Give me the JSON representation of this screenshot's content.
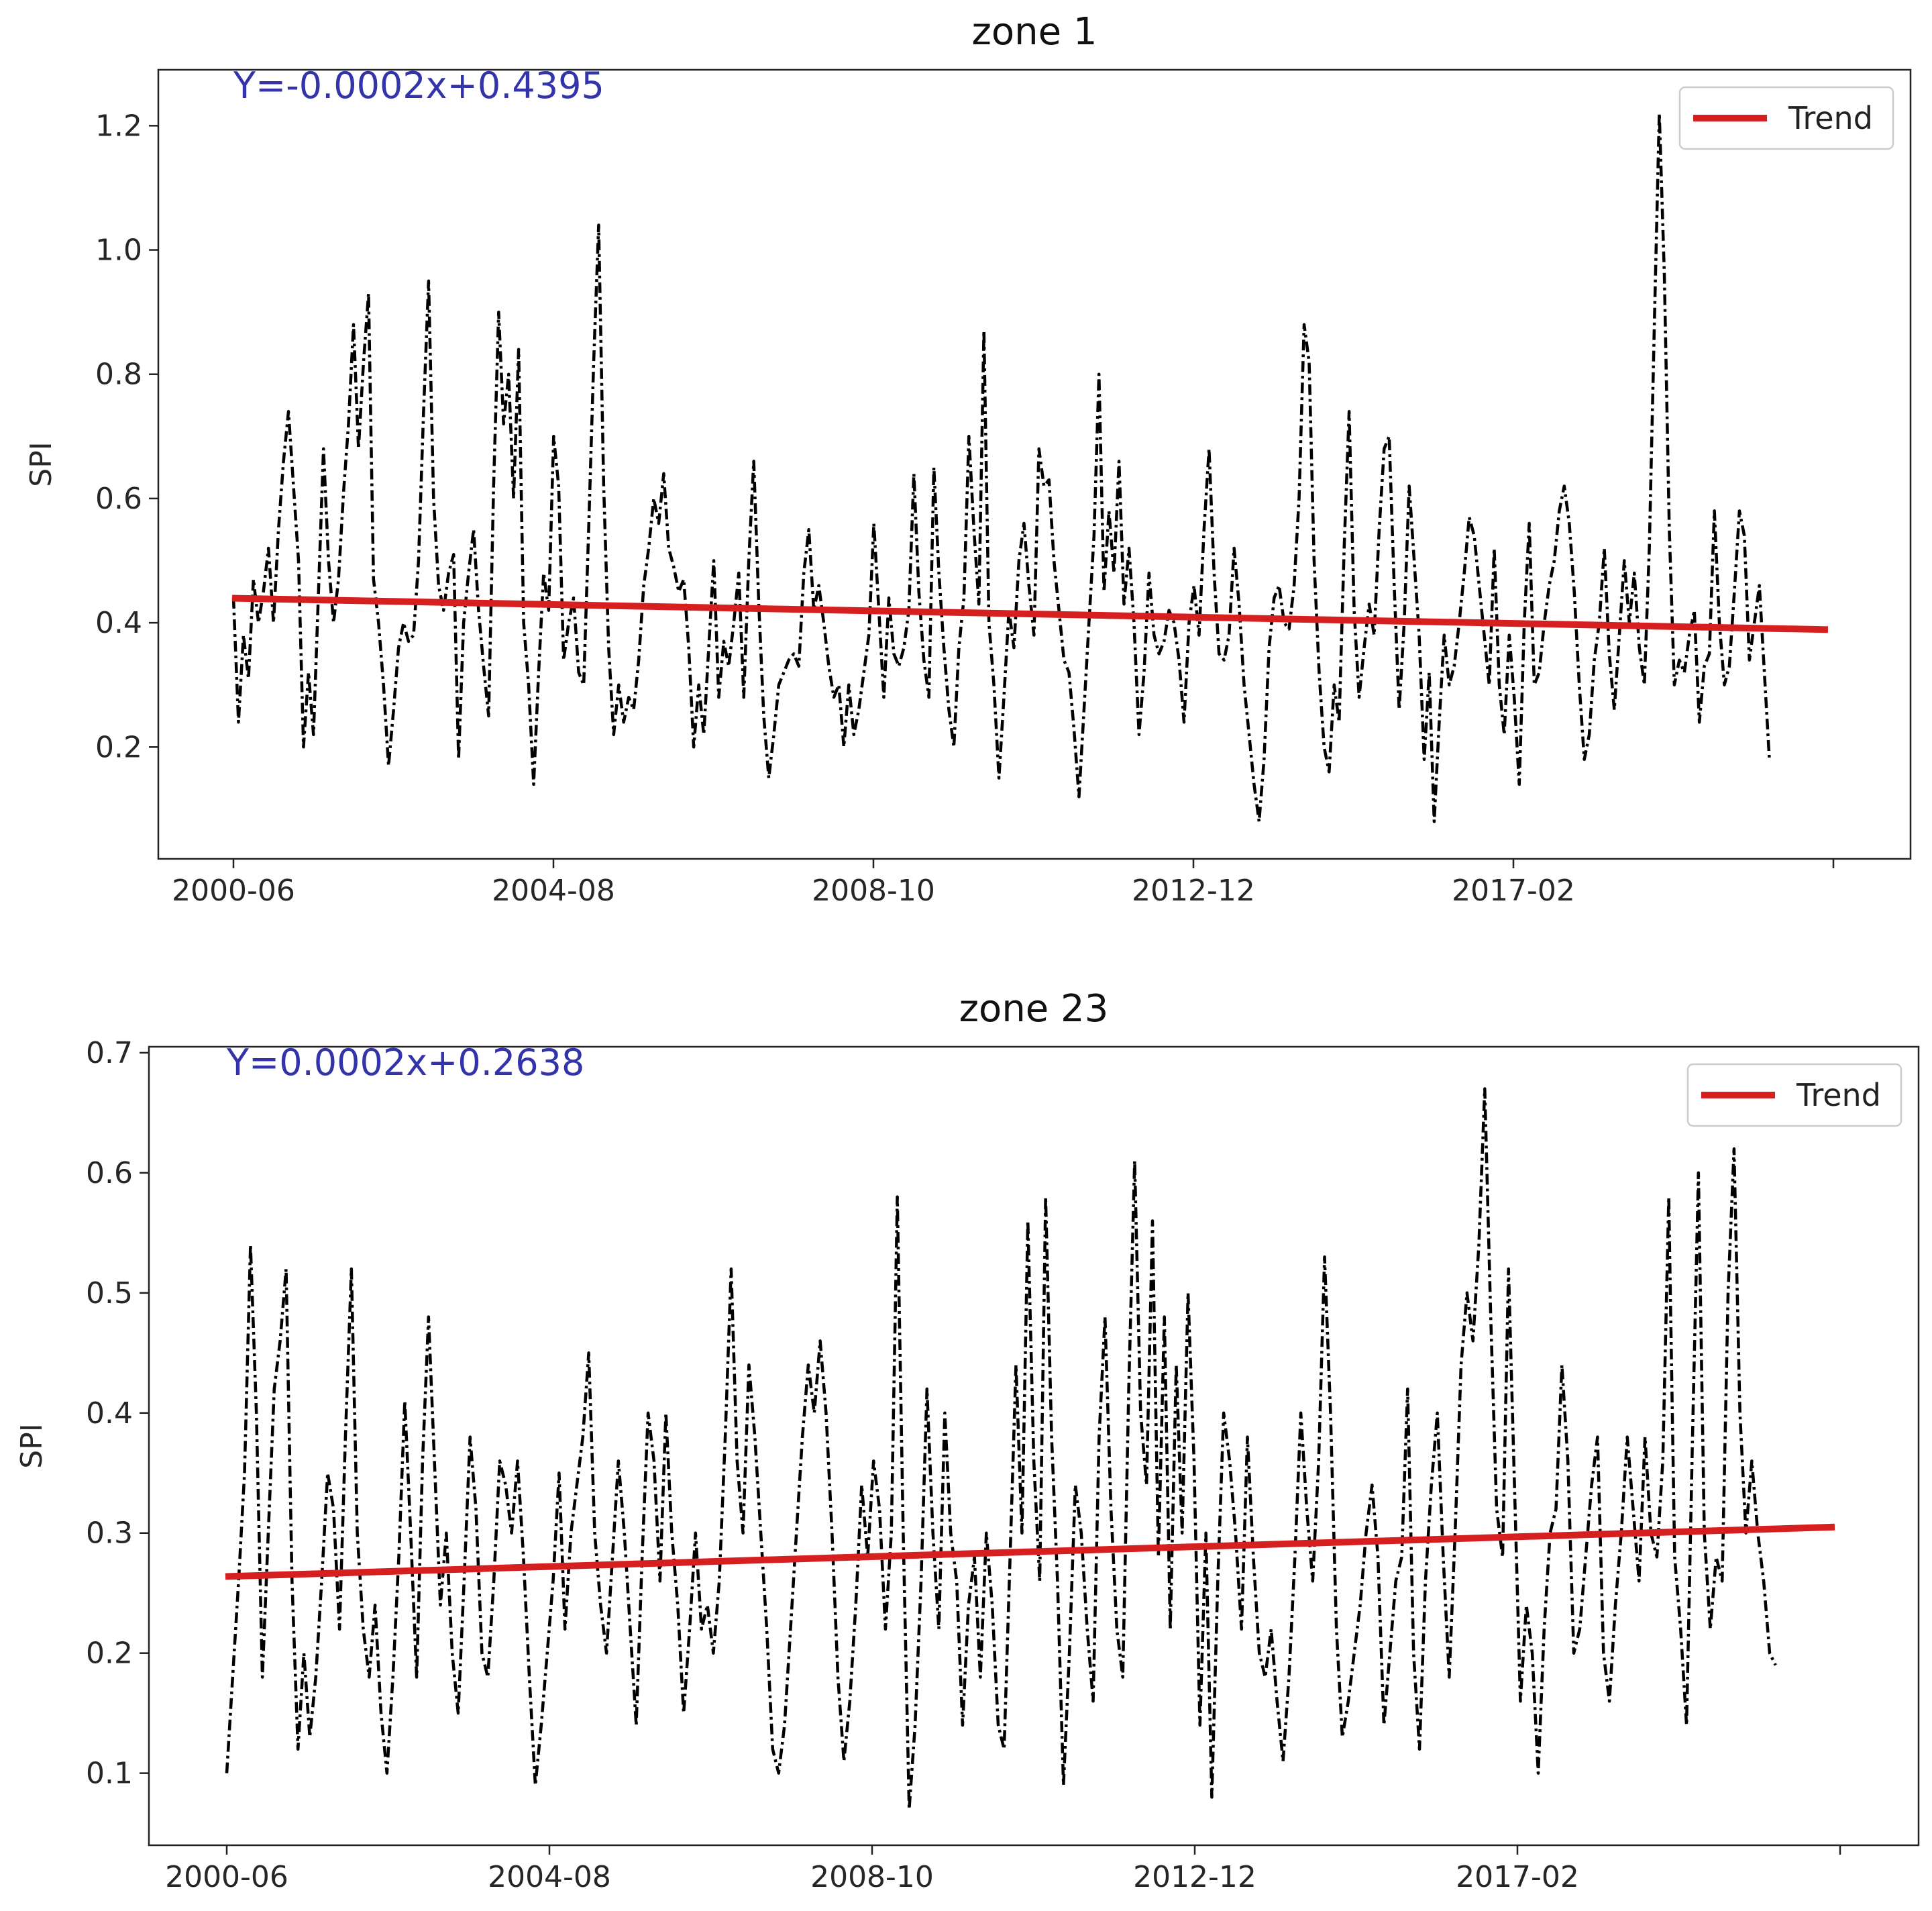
{
  "chart_data": [
    {
      "type": "line",
      "title": "zone 1",
      "ylabel": "SPI",
      "xlabel": "",
      "equation": "Y=-0.0002x+0.4395",
      "legend": {
        "placement": "top-right",
        "entries": [
          "Trend"
        ]
      },
      "x_ticks": [
        "2000-06",
        "2004-08",
        "2008-10",
        "2012-12",
        "2017-02",
        ""
      ],
      "y_ticks": [
        "0.2",
        "0.4",
        "0.6",
        "0.8",
        "1.0",
        "1.2"
      ],
      "ylim": [
        0.02,
        1.29
      ],
      "trend": {
        "name": "Trend",
        "start": 0.4395,
        "end": 0.389
      },
      "grid": false,
      "colors": {
        "series": "#000000",
        "trend": "#d62020",
        "equation": "#3333aa"
      },
      "series": [
        {
          "style": "dash-dot",
          "values": [
            0.44,
            0.24,
            0.38,
            0.31,
            0.47,
            0.4,
            0.45,
            0.52,
            0.4,
            0.55,
            0.66,
            0.74,
            0.62,
            0.5,
            0.2,
            0.32,
            0.22,
            0.45,
            0.68,
            0.5,
            0.4,
            0.47,
            0.61,
            0.72,
            0.88,
            0.68,
            0.82,
            0.93,
            0.47,
            0.4,
            0.3,
            0.17,
            0.26,
            0.36,
            0.4,
            0.37,
            0.38,
            0.5,
            0.74,
            0.95,
            0.6,
            0.46,
            0.42,
            0.48,
            0.51,
            0.18,
            0.4,
            0.48,
            0.55,
            0.42,
            0.33,
            0.25,
            0.62,
            0.9,
            0.72,
            0.8,
            0.6,
            0.84,
            0.4,
            0.3,
            0.14,
            0.32,
            0.48,
            0.42,
            0.7,
            0.62,
            0.34,
            0.4,
            0.44,
            0.32,
            0.3,
            0.55,
            0.82,
            1.04,
            0.62,
            0.36,
            0.22,
            0.3,
            0.24,
            0.28,
            0.26,
            0.34,
            0.46,
            0.52,
            0.6,
            0.56,
            0.64,
            0.52,
            0.49,
            0.45,
            0.47,
            0.36,
            0.2,
            0.3,
            0.22,
            0.36,
            0.5,
            0.28,
            0.37,
            0.33,
            0.4,
            0.48,
            0.28,
            0.5,
            0.66,
            0.43,
            0.25,
            0.15,
            0.22,
            0.3,
            0.32,
            0.34,
            0.35,
            0.33,
            0.48,
            0.55,
            0.42,
            0.46,
            0.4,
            0.33,
            0.28,
            0.3,
            0.2,
            0.3,
            0.22,
            0.26,
            0.32,
            0.38,
            0.56,
            0.42,
            0.28,
            0.44,
            0.35,
            0.33,
            0.36,
            0.42,
            0.64,
            0.45,
            0.34,
            0.28,
            0.65,
            0.48,
            0.36,
            0.26,
            0.2,
            0.36,
            0.44,
            0.7,
            0.55,
            0.43,
            0.87,
            0.4,
            0.3,
            0.15,
            0.28,
            0.42,
            0.36,
            0.5,
            0.56,
            0.46,
            0.38,
            0.68,
            0.62,
            0.63,
            0.5,
            0.42,
            0.34,
            0.32,
            0.23,
            0.12,
            0.26,
            0.4,
            0.54,
            0.8,
            0.45,
            0.58,
            0.48,
            0.66,
            0.43,
            0.52,
            0.4,
            0.22,
            0.32,
            0.48,
            0.38,
            0.35,
            0.37,
            0.42,
            0.4,
            0.34,
            0.24,
            0.4,
            0.46,
            0.38,
            0.55,
            0.68,
            0.48,
            0.35,
            0.34,
            0.38,
            0.52,
            0.43,
            0.3,
            0.22,
            0.14,
            0.08,
            0.18,
            0.36,
            0.44,
            0.46,
            0.4,
            0.39,
            0.46,
            0.6,
            0.88,
            0.82,
            0.5,
            0.32,
            0.2,
            0.16,
            0.3,
            0.24,
            0.52,
            0.74,
            0.42,
            0.28,
            0.36,
            0.43,
            0.38,
            0.55,
            0.68,
            0.7,
            0.46,
            0.26,
            0.4,
            0.62,
            0.5,
            0.38,
            0.18,
            0.32,
            0.08,
            0.24,
            0.38,
            0.3,
            0.33,
            0.4,
            0.48,
            0.57,
            0.54,
            0.46,
            0.38,
            0.3,
            0.52,
            0.3,
            0.22,
            0.38,
            0.28,
            0.14,
            0.4,
            0.56,
            0.3,
            0.32,
            0.4,
            0.46,
            0.5,
            0.58,
            0.62,
            0.56,
            0.45,
            0.3,
            0.18,
            0.22,
            0.34,
            0.4,
            0.52,
            0.35,
            0.26,
            0.38,
            0.5,
            0.4,
            0.48,
            0.36,
            0.3,
            0.52,
            0.88,
            1.22,
            0.96,
            0.55,
            0.3,
            0.34,
            0.32,
            0.38,
            0.42,
            0.24,
            0.33,
            0.35,
            0.58,
            0.4,
            0.3,
            0.33,
            0.45,
            0.58,
            0.54,
            0.34,
            0.4,
            0.46,
            0.32,
            0.18
          ]
        }
      ]
    },
    {
      "type": "line",
      "title": "zone 23",
      "ylabel": "SPI",
      "xlabel": "",
      "equation": "Y=0.0002x+0.2638",
      "legend": {
        "placement": "top-right",
        "entries": [
          "Trend"
        ]
      },
      "x_ticks": [
        "2000-06",
        "2004-08",
        "2008-10",
        "2012-12",
        "2017-02",
        ""
      ],
      "y_ticks": [
        "0.1",
        "0.2",
        "0.3",
        "0.4",
        "0.5",
        "0.6",
        "0.7"
      ],
      "ylim": [
        0.04,
        0.705
      ],
      "trend": {
        "name": "Trend",
        "start": 0.2638,
        "end": 0.305
      },
      "grid": false,
      "colors": {
        "series": "#000000",
        "trend": "#d62020",
        "equation": "#3333aa"
      },
      "series": [
        {
          "style": "dash-dot",
          "values": [
            0.1,
            0.18,
            0.26,
            0.35,
            0.54,
            0.4,
            0.18,
            0.3,
            0.42,
            0.46,
            0.52,
            0.26,
            0.12,
            0.2,
            0.13,
            0.18,
            0.26,
            0.35,
            0.32,
            0.22,
            0.38,
            0.52,
            0.3,
            0.22,
            0.18,
            0.24,
            0.15,
            0.1,
            0.18,
            0.28,
            0.41,
            0.3,
            0.18,
            0.36,
            0.48,
            0.36,
            0.24,
            0.3,
            0.2,
            0.15,
            0.26,
            0.38,
            0.32,
            0.2,
            0.18,
            0.26,
            0.36,
            0.34,
            0.3,
            0.36,
            0.28,
            0.18,
            0.09,
            0.14,
            0.2,
            0.26,
            0.35,
            0.22,
            0.3,
            0.34,
            0.38,
            0.45,
            0.3,
            0.24,
            0.2,
            0.28,
            0.36,
            0.3,
            0.22,
            0.14,
            0.28,
            0.4,
            0.36,
            0.26,
            0.4,
            0.3,
            0.24,
            0.15,
            0.22,
            0.3,
            0.22,
            0.24,
            0.2,
            0.26,
            0.38,
            0.52,
            0.36,
            0.3,
            0.44,
            0.38,
            0.3,
            0.22,
            0.12,
            0.1,
            0.14,
            0.22,
            0.3,
            0.38,
            0.44,
            0.4,
            0.46,
            0.4,
            0.3,
            0.18,
            0.11,
            0.16,
            0.24,
            0.34,
            0.28,
            0.36,
            0.32,
            0.22,
            0.3,
            0.58,
            0.3,
            0.07,
            0.14,
            0.26,
            0.42,
            0.3,
            0.22,
            0.4,
            0.3,
            0.26,
            0.14,
            0.24,
            0.28,
            0.18,
            0.3,
            0.24,
            0.14,
            0.12,
            0.28,
            0.44,
            0.3,
            0.56,
            0.36,
            0.26,
            0.58,
            0.38,
            0.26,
            0.09,
            0.2,
            0.34,
            0.3,
            0.22,
            0.16,
            0.38,
            0.48,
            0.32,
            0.22,
            0.18,
            0.42,
            0.61,
            0.4,
            0.34,
            0.56,
            0.28,
            0.48,
            0.22,
            0.44,
            0.3,
            0.5,
            0.36,
            0.14,
            0.3,
            0.08,
            0.26,
            0.4,
            0.36,
            0.3,
            0.22,
            0.38,
            0.28,
            0.2,
            0.18,
            0.22,
            0.16,
            0.11,
            0.18,
            0.28,
            0.4,
            0.32,
            0.26,
            0.36,
            0.53,
            0.4,
            0.22,
            0.13,
            0.16,
            0.2,
            0.24,
            0.3,
            0.34,
            0.28,
            0.14,
            0.2,
            0.26,
            0.28,
            0.42,
            0.2,
            0.12,
            0.26,
            0.34,
            0.4,
            0.28,
            0.18,
            0.3,
            0.44,
            0.5,
            0.46,
            0.54,
            0.67,
            0.48,
            0.32,
            0.28,
            0.52,
            0.34,
            0.16,
            0.24,
            0.2,
            0.1,
            0.22,
            0.3,
            0.32,
            0.44,
            0.36,
            0.2,
            0.22,
            0.28,
            0.34,
            0.38,
            0.2,
            0.16,
            0.24,
            0.3,
            0.38,
            0.32,
            0.26,
            0.38,
            0.3,
            0.28,
            0.36,
            0.58,
            0.28,
            0.22,
            0.14,
            0.38,
            0.6,
            0.3,
            0.22,
            0.28,
            0.26,
            0.5,
            0.62,
            0.4,
            0.3,
            0.36,
            0.3,
            0.26,
            0.2,
            0.19
          ]
        }
      ]
    }
  ]
}
